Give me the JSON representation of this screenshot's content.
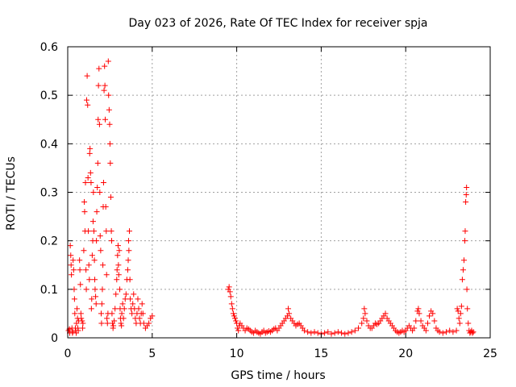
{
  "chart_data": {
    "type": "scatter",
    "title": "Day 023 of 2026, Rate Of TEC Index for receiver spja",
    "xlabel": "GPS time / hours",
    "ylabel": "ROTI / TECUs",
    "xlim": [
      0,
      25
    ],
    "ylim": [
      0,
      0.6
    ],
    "xticks": [
      0,
      5,
      10,
      15,
      20,
      25
    ],
    "yticks": [
      0,
      0.1,
      0.2,
      0.3,
      0.4,
      0.5,
      0.6
    ],
    "xtick_labels": [
      "0",
      "5",
      "10",
      "15",
      "20",
      "25"
    ],
    "ytick_labels": [
      "0",
      "0.1",
      "0.2",
      "0.3",
      "0.4",
      "0.5",
      "0.6"
    ],
    "grid": true,
    "marker": "+",
    "color": "#ff0000",
    "series": [
      {
        "name": "ROTI",
        "points": [
          [
            0.05,
            0.015
          ],
          [
            0.1,
            0.018
          ],
          [
            0.12,
            0.01
          ],
          [
            0.15,
            0.19
          ],
          [
            0.18,
            0.17
          ],
          [
            0.2,
            0.15
          ],
          [
            0.22,
            0.13
          ],
          [
            0.25,
            0.02
          ],
          [
            0.28,
            0.01
          ],
          [
            0.3,
            0.012
          ],
          [
            0.32,
            0.16
          ],
          [
            0.35,
            0.14
          ],
          [
            0.38,
            0.1
          ],
          [
            0.4,
            0.08
          ],
          [
            0.42,
            0.05
          ],
          [
            0.45,
            0.02
          ],
          [
            0.48,
            0.015
          ],
          [
            0.5,
            0.01
          ],
          [
            0.52,
            0.03
          ],
          [
            0.55,
            0.06
          ],
          [
            0.58,
            0.04
          ],
          [
            0.6,
            0.02
          ],
          [
            0.62,
            0.015
          ],
          [
            0.65,
            0.035
          ],
          [
            0.7,
            0.16
          ],
          [
            0.72,
            0.14
          ],
          [
            0.75,
            0.11
          ],
          [
            0.78,
            0.05
          ],
          [
            0.8,
            0.04
          ],
          [
            0.85,
            0.035
          ],
          [
            0.88,
            0.02
          ],
          [
            0.9,
            0.03
          ],
          [
            0.95,
            0.18
          ],
          [
            0.98,
            0.28
          ],
          [
            1.0,
            0.26
          ],
          [
            1.02,
            0.22
          ],
          [
            1.05,
            0.32
          ],
          [
            1.08,
            0.14
          ],
          [
            1.1,
            0.1
          ],
          [
            1.12,
            0.49
          ],
          [
            1.15,
            0.54
          ],
          [
            1.18,
            0.48
          ],
          [
            1.2,
            0.33
          ],
          [
            1.22,
            0.22
          ],
          [
            1.25,
            0.15
          ],
          [
            1.28,
            0.12
          ],
          [
            1.3,
            0.38
          ],
          [
            1.32,
            0.39
          ],
          [
            1.35,
            0.34
          ],
          [
            1.38,
            0.32
          ],
          [
            1.4,
            0.06
          ],
          [
            1.42,
            0.08
          ],
          [
            1.45,
            0.17
          ],
          [
            1.48,
            0.2
          ],
          [
            1.5,
            0.24
          ],
          [
            1.52,
            0.3
          ],
          [
            1.55,
            0.22
          ],
          [
            1.58,
            0.16
          ],
          [
            1.6,
            0.12
          ],
          [
            1.62,
            0.1
          ],
          [
            1.65,
            0.085
          ],
          [
            1.68,
            0.07
          ],
          [
            1.7,
            0.2
          ],
          [
            1.72,
            0.26
          ],
          [
            1.75,
            0.31
          ],
          [
            1.78,
            0.36
          ],
          [
            1.8,
            0.45
          ],
          [
            1.82,
            0.52
          ],
          [
            1.85,
            0.555
          ],
          [
            1.88,
            0.44
          ],
          [
            1.9,
            0.3
          ],
          [
            1.92,
            0.21
          ],
          [
            1.95,
            0.18
          ],
          [
            1.98,
            0.05
          ],
          [
            2.0,
            0.03
          ],
          [
            2.02,
            0.07
          ],
          [
            2.05,
            0.1
          ],
          [
            2.08,
            0.15
          ],
          [
            2.1,
            0.27
          ],
          [
            2.12,
            0.32
          ],
          [
            2.15,
            0.51
          ],
          [
            2.18,
            0.56
          ],
          [
            2.2,
            0.52
          ],
          [
            2.22,
            0.45
          ],
          [
            2.25,
            0.27
          ],
          [
            2.28,
            0.22
          ],
          [
            2.3,
            0.13
          ],
          [
            2.32,
            0.04
          ],
          [
            2.35,
            0.03
          ],
          [
            2.38,
            0.05
          ],
          [
            2.4,
            0.57
          ],
          [
            2.42,
            0.5
          ],
          [
            2.45,
            0.47
          ],
          [
            2.48,
            0.44
          ],
          [
            2.5,
            0.4
          ],
          [
            2.52,
            0.36
          ],
          [
            2.55,
            0.29
          ],
          [
            2.58,
            0.22
          ],
          [
            2.6,
            0.2
          ],
          [
            2.62,
            0.05
          ],
          [
            2.65,
            0.03
          ],
          [
            2.68,
            0.02
          ],
          [
            2.7,
            0.025
          ],
          [
            2.75,
            0.035
          ],
          [
            2.8,
            0.06
          ],
          [
            2.85,
            0.09
          ],
          [
            2.9,
            0.12
          ],
          [
            2.92,
            0.14
          ],
          [
            2.95,
            0.17
          ],
          [
            2.98,
            0.19
          ],
          [
            3.0,
            0.15
          ],
          [
            3.02,
            0.13
          ],
          [
            3.05,
            0.18
          ],
          [
            3.08,
            0.1
          ],
          [
            3.1,
            0.06
          ],
          [
            3.12,
            0.04
          ],
          [
            3.15,
            0.03
          ],
          [
            3.18,
            0.025
          ],
          [
            3.2,
            0.05
          ],
          [
            3.25,
            0.07
          ],
          [
            3.3,
            0.04
          ],
          [
            3.35,
            0.06
          ],
          [
            3.4,
            0.08
          ],
          [
            3.45,
            0.09
          ],
          [
            3.5,
            0.12
          ],
          [
            3.55,
            0.14
          ],
          [
            3.58,
            0.16
          ],
          [
            3.6,
            0.2
          ],
          [
            3.62,
            0.18
          ],
          [
            3.65,
            0.22
          ],
          [
            3.68,
            0.12
          ],
          [
            3.7,
            0.08
          ],
          [
            3.75,
            0.06
          ],
          [
            3.8,
            0.05
          ],
          [
            3.85,
            0.07
          ],
          [
            3.9,
            0.09
          ],
          [
            3.95,
            0.06
          ],
          [
            4.0,
            0.04
          ],
          [
            4.05,
            0.03
          ],
          [
            4.1,
            0.05
          ],
          [
            4.15,
            0.08
          ],
          [
            4.2,
            0.06
          ],
          [
            4.25,
            0.04
          ],
          [
            4.3,
            0.03
          ],
          [
            4.35,
            0.05
          ],
          [
            4.4,
            0.07
          ],
          [
            4.45,
            0.05
          ],
          [
            4.5,
            0.03
          ],
          [
            4.6,
            0.02
          ],
          [
            4.7,
            0.025
          ],
          [
            4.8,
            0.03
          ],
          [
            4.9,
            0.04
          ],
          [
            5.0,
            0.045
          ],
          [
            9.5,
            0.1
          ],
          [
            9.55,
            0.105
          ],
          [
            9.6,
            0.095
          ],
          [
            9.65,
            0.085
          ],
          [
            9.7,
            0.07
          ],
          [
            9.75,
            0.06
          ],
          [
            9.8,
            0.05
          ],
          [
            9.85,
            0.045
          ],
          [
            9.9,
            0.04
          ],
          [
            9.95,
            0.035
          ],
          [
            10.0,
            0.03
          ],
          [
            10.05,
            0.02
          ],
          [
            10.1,
            0.015
          ],
          [
            10.15,
            0.025
          ],
          [
            10.2,
            0.03
          ],
          [
            10.3,
            0.025
          ],
          [
            10.4,
            0.02
          ],
          [
            10.5,
            0.015
          ],
          [
            10.6,
            0.02
          ],
          [
            10.7,
            0.018
          ],
          [
            10.8,
            0.015
          ],
          [
            10.9,
            0.012
          ],
          [
            11.0,
            0.01
          ],
          [
            11.1,
            0.015
          ],
          [
            11.2,
            0.012
          ],
          [
            11.3,
            0.01
          ],
          [
            11.4,
            0.008
          ],
          [
            11.5,
            0.012
          ],
          [
            11.6,
            0.015
          ],
          [
            11.7,
            0.01
          ],
          [
            11.8,
            0.012
          ],
          [
            11.9,
            0.014
          ],
          [
            12.0,
            0.012
          ],
          [
            12.1,
            0.015
          ],
          [
            12.2,
            0.018
          ],
          [
            12.3,
            0.02
          ],
          [
            12.4,
            0.015
          ],
          [
            12.5,
            0.02
          ],
          [
            12.6,
            0.025
          ],
          [
            12.7,
            0.03
          ],
          [
            12.8,
            0.035
          ],
          [
            12.9,
            0.04
          ],
          [
            13.0,
            0.045
          ],
          [
            13.05,
            0.06
          ],
          [
            13.1,
            0.05
          ],
          [
            13.2,
            0.04
          ],
          [
            13.3,
            0.035
          ],
          [
            13.4,
            0.03
          ],
          [
            13.5,
            0.025
          ],
          [
            13.6,
            0.028
          ],
          [
            13.7,
            0.03
          ],
          [
            13.8,
            0.025
          ],
          [
            13.9,
            0.02
          ],
          [
            14.0,
            0.015
          ],
          [
            14.2,
            0.012
          ],
          [
            14.4,
            0.01
          ],
          [
            14.6,
            0.012
          ],
          [
            14.8,
            0.01
          ],
          [
            15.0,
            0.008
          ],
          [
            15.2,
            0.01
          ],
          [
            15.4,
            0.012
          ],
          [
            15.6,
            0.008
          ],
          [
            15.8,
            0.01
          ],
          [
            16.0,
            0.012
          ],
          [
            16.2,
            0.01
          ],
          [
            16.4,
            0.008
          ],
          [
            16.6,
            0.01
          ],
          [
            16.8,
            0.012
          ],
          [
            17.0,
            0.015
          ],
          [
            17.2,
            0.02
          ],
          [
            17.4,
            0.03
          ],
          [
            17.5,
            0.04
          ],
          [
            17.55,
            0.06
          ],
          [
            17.6,
            0.05
          ],
          [
            17.7,
            0.035
          ],
          [
            17.8,
            0.025
          ],
          [
            17.9,
            0.02
          ],
          [
            18.0,
            0.02
          ],
          [
            18.1,
            0.025
          ],
          [
            18.2,
            0.03
          ],
          [
            18.3,
            0.028
          ],
          [
            18.4,
            0.03
          ],
          [
            18.5,
            0.035
          ],
          [
            18.6,
            0.04
          ],
          [
            18.7,
            0.045
          ],
          [
            18.8,
            0.05
          ],
          [
            18.9,
            0.04
          ],
          [
            19.0,
            0.035
          ],
          [
            19.1,
            0.03
          ],
          [
            19.2,
            0.025
          ],
          [
            19.3,
            0.02
          ],
          [
            19.4,
            0.015
          ],
          [
            19.5,
            0.012
          ],
          [
            19.6,
            0.01
          ],
          [
            19.7,
            0.012
          ],
          [
            19.8,
            0.015
          ],
          [
            19.9,
            0.012
          ],
          [
            20.0,
            0.015
          ],
          [
            20.1,
            0.02
          ],
          [
            20.2,
            0.025
          ],
          [
            20.3,
            0.02
          ],
          [
            20.4,
            0.015
          ],
          [
            20.5,
            0.02
          ],
          [
            20.6,
            0.035
          ],
          [
            20.7,
            0.055
          ],
          [
            20.75,
            0.06
          ],
          [
            20.8,
            0.05
          ],
          [
            20.9,
            0.035
          ],
          [
            21.0,
            0.025
          ],
          [
            21.1,
            0.02
          ],
          [
            21.2,
            0.015
          ],
          [
            21.3,
            0.03
          ],
          [
            21.4,
            0.045
          ],
          [
            21.5,
            0.055
          ],
          [
            21.6,
            0.05
          ],
          [
            21.7,
            0.035
          ],
          [
            21.8,
            0.02
          ],
          [
            21.9,
            0.015
          ],
          [
            22.0,
            0.012
          ],
          [
            22.2,
            0.01
          ],
          [
            22.4,
            0.012
          ],
          [
            22.6,
            0.015
          ],
          [
            22.8,
            0.012
          ],
          [
            23.0,
            0.015
          ],
          [
            23.05,
            0.06
          ],
          [
            23.1,
            0.055
          ],
          [
            23.15,
            0.04
          ],
          [
            23.2,
            0.03
          ],
          [
            23.25,
            0.05
          ],
          [
            23.3,
            0.065
          ],
          [
            23.35,
            0.12
          ],
          [
            23.4,
            0.14
          ],
          [
            23.45,
            0.16
          ],
          [
            23.5,
            0.2
          ],
          [
            23.52,
            0.22
          ],
          [
            23.55,
            0.28
          ],
          [
            23.58,
            0.295
          ],
          [
            23.6,
            0.31
          ],
          [
            23.62,
            0.1
          ],
          [
            23.65,
            0.06
          ],
          [
            23.7,
            0.03
          ],
          [
            23.75,
            0.015
          ],
          [
            23.8,
            0.01
          ],
          [
            23.85,
            0.012
          ],
          [
            23.9,
            0.015
          ],
          [
            23.95,
            0.01
          ],
          [
            24.0,
            0.012
          ]
        ]
      }
    ]
  }
}
